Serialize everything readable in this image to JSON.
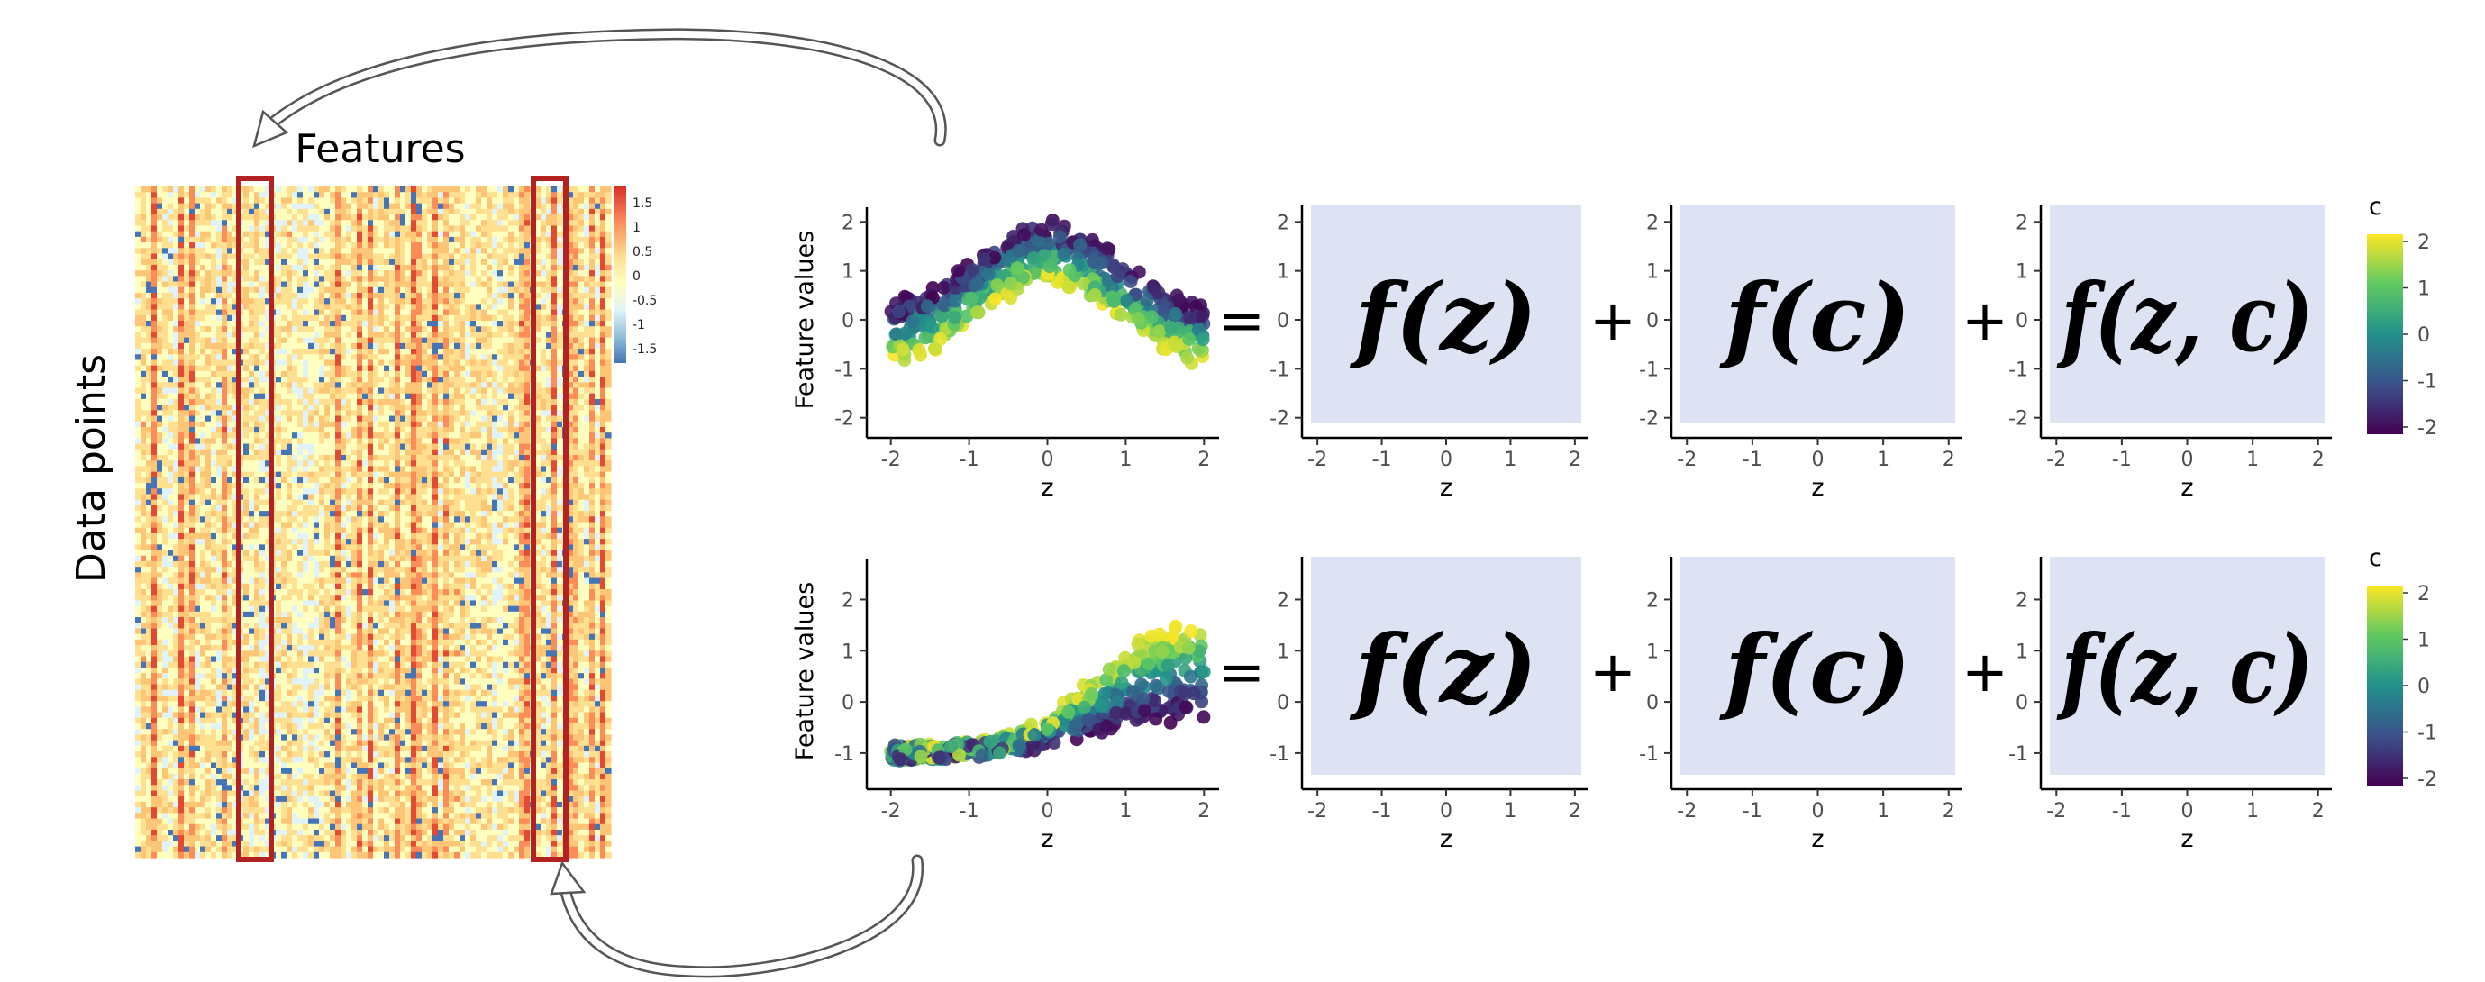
{
  "heatmap": {
    "x_label": "Features",
    "y_label": "Data points",
    "colorbar_ticks": [
      "1.5",
      "1",
      "0.5",
      "0",
      "-0.5",
      "-1",
      "-1.5"
    ],
    "colorbar_colors": [
      "#d73027",
      "#fc8d59",
      "#fee090",
      "#ffffbf",
      "#e0f3f8",
      "#91bfdb",
      "#4575b4"
    ]
  },
  "rows": [
    {
      "ylabel": "Feature values",
      "xlabel": "z",
      "x_ticks": [
        "-2",
        "-1",
        "0",
        "1",
        "2"
      ],
      "y_ticks": [
        "2",
        "1",
        "0",
        "-1",
        "-2"
      ],
      "panels": [
        {
          "formula": "f(z)",
          "x_ticks": [
            "-2",
            "-1",
            "0",
            "1",
            "2"
          ],
          "y_ticks": [
            "2",
            "1",
            "0",
            "-1",
            "-2"
          ],
          "xlabel": "z"
        },
        {
          "formula": "f(c)",
          "x_ticks": [
            "-2",
            "-1",
            "0",
            "1",
            "2"
          ],
          "y_ticks": [
            "2",
            "1",
            "0",
            "-1",
            "-2"
          ],
          "xlabel": "z"
        },
        {
          "formula": "f(z, c)",
          "x_ticks": [
            "-2",
            "-1",
            "0",
            "1",
            "2"
          ],
          "y_ticks": [
            "2",
            "1",
            "0",
            "-1",
            "-2"
          ],
          "xlabel": "z"
        }
      ],
      "operators": [
        "=",
        "+",
        "+"
      ],
      "legend": {
        "title": "c",
        "ticks": [
          "2",
          "1",
          "0",
          "-1",
          "-2"
        ]
      }
    },
    {
      "ylabel": "Feature values",
      "xlabel": "z",
      "x_ticks": [
        "-2",
        "-1",
        "0",
        "1",
        "2"
      ],
      "y_ticks": [
        "2",
        "1",
        "0",
        "-1"
      ],
      "panels": [
        {
          "formula": "f(z)",
          "x_ticks": [
            "-2",
            "-1",
            "0",
            "1",
            "2"
          ],
          "y_ticks": [
            "2",
            "1",
            "0",
            "-1"
          ],
          "xlabel": "z"
        },
        {
          "formula": "f(c)",
          "x_ticks": [
            "-2",
            "-1",
            "0",
            "1",
            "2"
          ],
          "y_ticks": [
            "2",
            "1",
            "0",
            "-1"
          ],
          "xlabel": "z"
        },
        {
          "formula": "f(z, c)",
          "x_ticks": [
            "-2",
            "-1",
            "0",
            "1",
            "2"
          ],
          "y_ticks": [
            "2",
            "1",
            "0",
            "-1"
          ],
          "xlabel": "z"
        }
      ],
      "operators": [
        "=",
        "+",
        "+"
      ],
      "legend": {
        "title": "c",
        "ticks": [
          "2",
          "1",
          "0",
          "-1",
          "-2"
        ]
      }
    }
  ],
  "colors": {
    "highlight": "#b22222",
    "panel_fill": "#dde3f3",
    "arrow": "#555555",
    "viridis": [
      "#fde725",
      "#5ec962",
      "#21918c",
      "#3b528b",
      "#440154"
    ]
  }
}
